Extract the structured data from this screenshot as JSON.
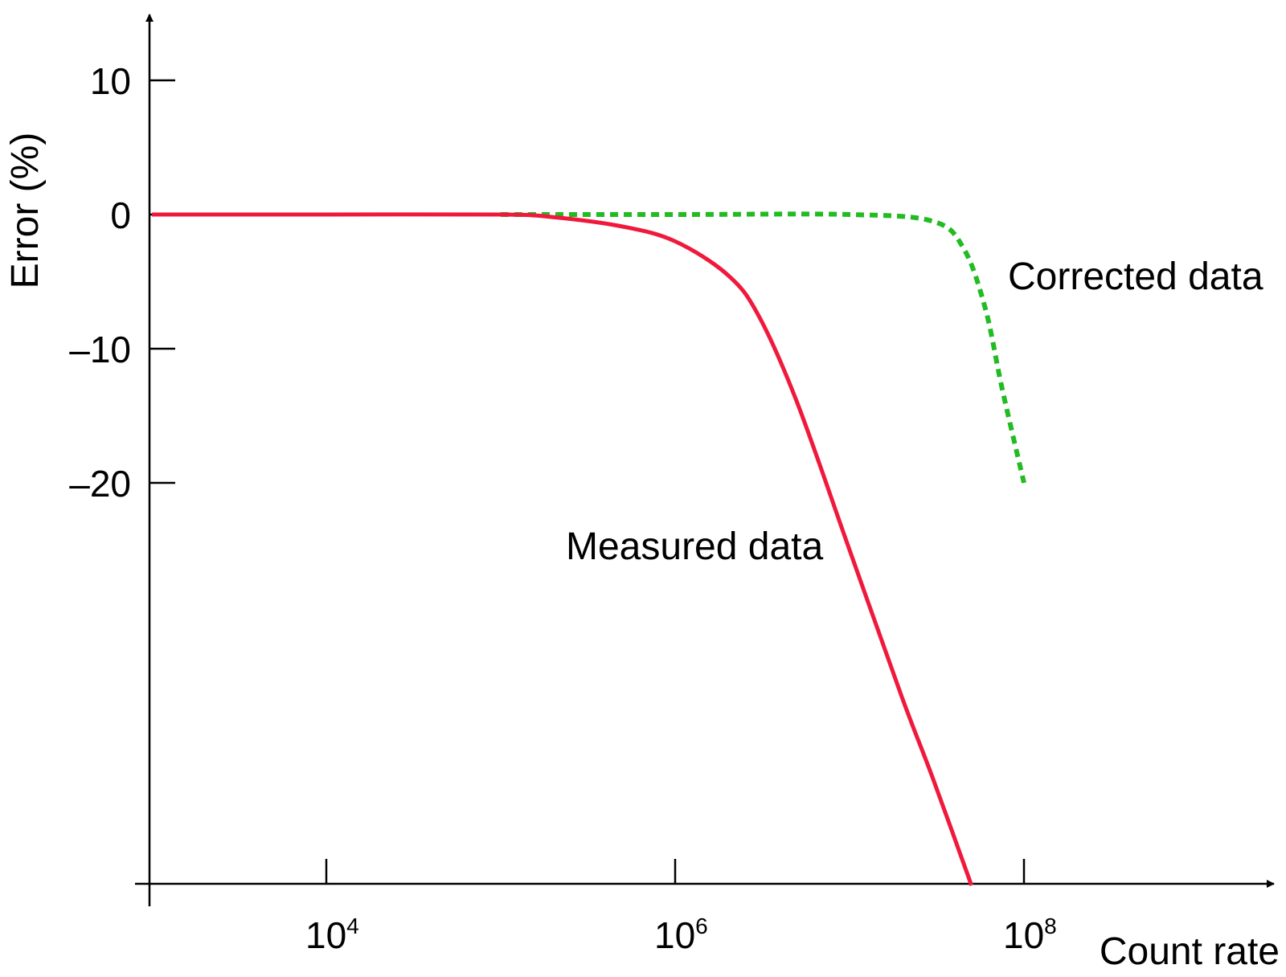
{
  "chart_data": {
    "type": "line",
    "xlabel": "Count rate",
    "ylabel": "Error (%)",
    "x_scale": "log",
    "xlim": [
      1000,
      2000000000
    ],
    "ylim": [
      -50,
      15
    ],
    "x_ticks": [
      {
        "base": "10",
        "exp": "4",
        "value": 10000
      },
      {
        "base": "10",
        "exp": "6",
        "value": 1000000
      },
      {
        "base": "10",
        "exp": "8",
        "value": 100000000
      }
    ],
    "y_ticks": [
      {
        "label": "10",
        "value": 10
      },
      {
        "label": "0",
        "value": 0
      },
      {
        "label": "–10",
        "value": -10
      },
      {
        "label": "–20",
        "value": -20
      }
    ],
    "series": [
      {
        "name": "Measured data",
        "color": "#f0193c",
        "style": "solid",
        "x": [
          1000,
          10000,
          100000,
          200000,
          500000,
          1000000,
          2000000,
          3000000,
          5000000,
          10000000,
          20000000,
          30000000,
          50000000
        ],
        "y": [
          0,
          0,
          0,
          -0.2,
          -0.9,
          -2,
          -4.5,
          -7.5,
          -14,
          -25,
          -36,
          -42,
          -50
        ]
      },
      {
        "name": "Corrected data",
        "color": "#22bb22",
        "style": "dotted",
        "x": [
          100000,
          1000000,
          10000000,
          30000000,
          45000000,
          60000000,
          75000000,
          100000000
        ],
        "y": [
          0,
          0,
          0,
          -0.5,
          -2.5,
          -7,
          -13,
          -20
        ]
      }
    ],
    "annotations": [
      {
        "text": "Corrected data",
        "series": 1
      },
      {
        "text": "Measured data",
        "series": 0
      }
    ],
    "grid": false,
    "legend": "none"
  }
}
